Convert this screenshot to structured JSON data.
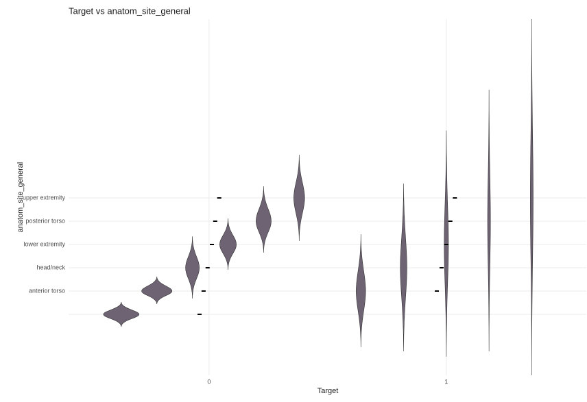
{
  "chart_data": {
    "type": "violin",
    "title": "Target vs anatom_site_general",
    "x_label": "Target",
    "y_label": "anatom_site_general",
    "xlim": [
      -0.592,
      1.59
    ],
    "xticks": [
      0,
      1
    ],
    "ylim": [
      -2.62,
      12.68
    ],
    "categories": [
      null,
      "anterior torso",
      "head/neck",
      "lower extremity",
      "posterior torso",
      "upper extremity"
    ],
    "color": "#6e6373",
    "grid": true,
    "violins": [
      {
        "x": -0.37,
        "y": 0,
        "top": 0.53,
        "bottom": -0.53,
        "width": 0.075
      },
      {
        "x": -0.22,
        "y": 1,
        "top": 1.62,
        "bottom": 0.44,
        "width": 0.064
      },
      {
        "x": -0.07,
        "y": 2,
        "top": 3.35,
        "bottom": 0.68,
        "width": 0.029
      },
      {
        "x": 0.08,
        "y": 3,
        "top": 4.12,
        "bottom": 1.91,
        "width": 0.035
      },
      {
        "x": 0.23,
        "y": 4,
        "top": 5.5,
        "bottom": 2.65,
        "width": 0.032
      },
      {
        "x": 0.38,
        "y": 5,
        "top": 6.85,
        "bottom": 3.15,
        "width": 0.023
      },
      {
        "x": 0.64,
        "y": 1,
        "top": 3.44,
        "bottom": -1.41,
        "width": 0.02
      },
      {
        "x": 0.82,
        "y": 2,
        "top": 5.62,
        "bottom": -1.59,
        "width": 0.014
      },
      {
        "x": 1.0,
        "y": 3,
        "top": 7.9,
        "bottom": -1.82,
        "width": 0.009
      },
      {
        "x": 1.18,
        "y": 4,
        "top": 9.65,
        "bottom": -1.59,
        "width": 0.006
      },
      {
        "x": 1.36,
        "y": 5,
        "top": 12.68,
        "bottom": -2.62,
        "width": 0.006
      }
    ],
    "points": [
      {
        "x": -0.04,
        "y": 0
      },
      {
        "x": -0.023,
        "y": 1
      },
      {
        "x": -0.006,
        "y": 2
      },
      {
        "x": 0.012,
        "y": 3
      },
      {
        "x": 0.026,
        "y": 4
      },
      {
        "x": 0.043,
        "y": 5
      },
      {
        "x": 0.96,
        "y": 1
      },
      {
        "x": 0.98,
        "y": 2
      },
      {
        "x": 1.0,
        "y": 3
      },
      {
        "x": 1.017,
        "y": 4
      },
      {
        "x": 1.036,
        "y": 5
      }
    ]
  }
}
